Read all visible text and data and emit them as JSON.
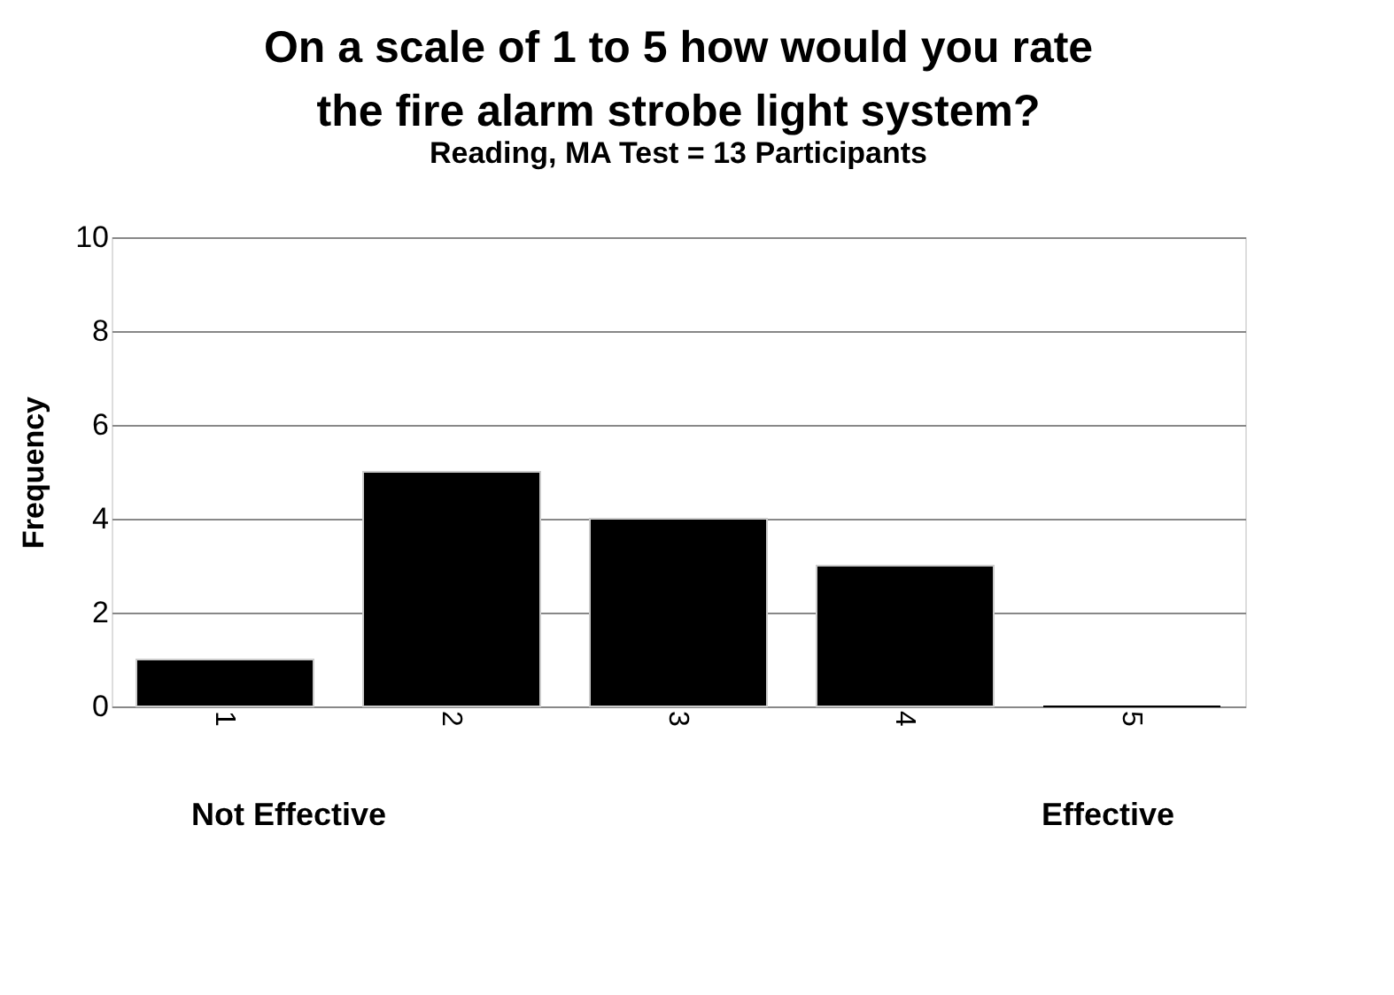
{
  "chart_data": {
    "type": "bar",
    "title": "On a scale of 1 to 5 how would you rate\nthe fire alarm strobe light system?",
    "subtitle": "Reading, MA Test = 13 Participants",
    "ylabel": "Frequency",
    "categories": [
      "1",
      "2",
      "3",
      "4",
      "5"
    ],
    "values": [
      1,
      5,
      4,
      3,
      0
    ],
    "color": "#000000",
    "ylim": [
      0,
      10
    ],
    "yticks": [
      0,
      2,
      4,
      6,
      8,
      10
    ],
    "grid": "y",
    "annotations": [
      "Not Effective",
      "Effective"
    ]
  }
}
